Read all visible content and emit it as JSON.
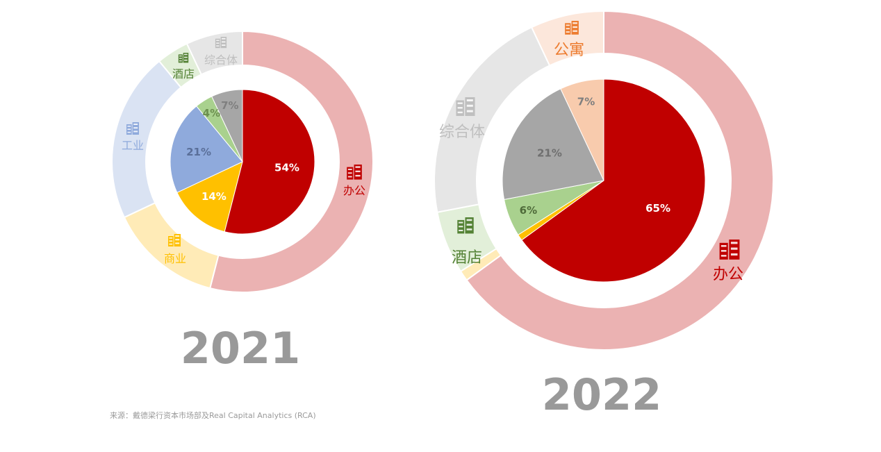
{
  "chart_data": [
    {
      "type": "pie",
      "title": "2021",
      "slices": [
        {
          "key": "office",
          "label": "办公",
          "value": 54,
          "pct_label": "54%",
          "color": "#C00000",
          "outer_color": "#EBB2B2",
          "label_color": "#C00000",
          "text_color": "#ffffff"
        },
        {
          "key": "retail",
          "label": "商业",
          "value": 14,
          "pct_label": "14%",
          "color": "#FFC000",
          "outer_color": "#FFEBB7",
          "label_color": "#FFC000",
          "text_color": "#ffffff"
        },
        {
          "key": "industrial",
          "label": "工业",
          "value": 21,
          "pct_label": "21%",
          "color": "#8FAADC",
          "outer_color": "#DAE3F3",
          "label_color": "#8FAADC",
          "text_color": "#5a6f99"
        },
        {
          "key": "hotel",
          "label": "酒店",
          "value": 4,
          "pct_label": "4%",
          "color": "#A9D18E",
          "outer_color": "#E2EFD9",
          "label_color": "#548235",
          "text_color": "#6b8f4e"
        },
        {
          "key": "mixed",
          "label": "综合体",
          "value": 7,
          "pct_label": "7%",
          "color": "#A6A6A6",
          "outer_color": "#E6E6E6",
          "label_color": "#BFBFBF",
          "text_color": "#7f7f7f"
        }
      ]
    },
    {
      "type": "pie",
      "title": "2022",
      "slices": [
        {
          "key": "office",
          "label": "办公",
          "value": 65,
          "pct_label": "65%",
          "color": "#C00000",
          "outer_color": "#EBB2B2",
          "label_color": "#C00000",
          "text_color": "#ffffff"
        },
        {
          "key": "retail",
          "label": "",
          "value": 1,
          "pct_label": "",
          "color": "#FFC000",
          "outer_color": "#FFEBB7",
          "label_color": "#FFC000",
          "text_color": "#ffffff"
        },
        {
          "key": "hotel",
          "label": "酒店",
          "value": 6,
          "pct_label": "6%",
          "color": "#A9D18E",
          "outer_color": "#E2EFD9",
          "label_color": "#548235",
          "text_color": "#4f6b3a"
        },
        {
          "key": "mixed",
          "label": "综合体",
          "value": 21,
          "pct_label": "21%",
          "color": "#A6A6A6",
          "outer_color": "#E6E6E6",
          "label_color": "#BFBFBF",
          "text_color": "#6f6f6f"
        },
        {
          "key": "apartment",
          "label": "公寓",
          "value": 7,
          "pct_label": "7%",
          "color": "#F8CBAD",
          "outer_color": "#FCE7DB",
          "label_color": "#ED7D31",
          "text_color": "#7f7f7f"
        }
      ]
    }
  ],
  "source": "来源：戴德梁行资本市场部及Real Capital Analytics (RCA)"
}
